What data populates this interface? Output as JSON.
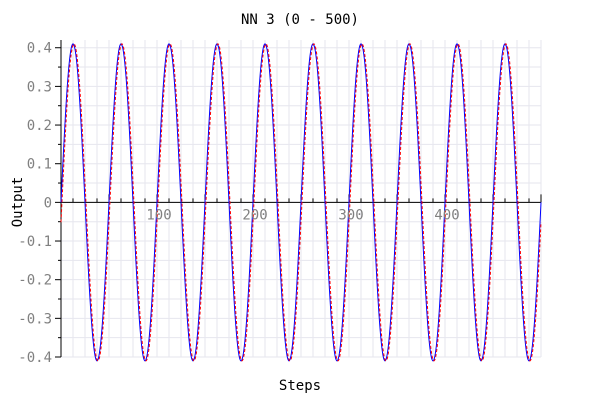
{
  "chart_data": {
    "type": "line",
    "title": "NN 3 (0 - 500)",
    "xlabel": "Steps",
    "ylabel": "Output",
    "xlim": [
      0,
      500
    ],
    "ylim": [
      -0.4,
      0.42
    ],
    "x_ticks": [
      100,
      200,
      300,
      400
    ],
    "x_tick_labels": [
      "100",
      "200",
      "300",
      "400"
    ],
    "y_ticks": [
      0.4,
      0.3,
      0.2,
      0.1,
      0,
      -0.1,
      -0.2,
      -0.3,
      -0.4
    ],
    "y_tick_labels": [
      "0.4",
      "0.3",
      "0.2",
      "0.1",
      "0",
      "-0.1",
      "-0.2",
      "-0.3",
      "-0.4"
    ],
    "grid": true,
    "legend": "none",
    "series": [
      {
        "color": "#0000ff",
        "style": "solid",
        "amplitude": 0.41,
        "period": 50,
        "phase_step": 0,
        "x": [
          0,
          12.5,
          25,
          37.5,
          50,
          62.5,
          75,
          87.5,
          100,
          112.5,
          125,
          137.5,
          150,
          162.5,
          175,
          187.5,
          200,
          212.5,
          225,
          237.5,
          250,
          262.5,
          275,
          287.5,
          300,
          312.5,
          325,
          337.5,
          350,
          362.5,
          375,
          387.5,
          400,
          412.5,
          425,
          437.5,
          450,
          462.5,
          475,
          487.5,
          500
        ],
        "y": [
          0,
          0.41,
          0,
          -0.41,
          0,
          0.41,
          0,
          -0.41,
          0,
          0.41,
          0,
          -0.41,
          0,
          0.41,
          0,
          -0.41,
          0,
          0.41,
          0,
          -0.41,
          0,
          0.41,
          0,
          -0.41,
          0,
          0.41,
          0,
          -0.41,
          0,
          0.41,
          0,
          -0.41,
          0,
          0.41,
          0,
          -0.41,
          0,
          0.41,
          0,
          -0.41,
          -0.29
        ]
      },
      {
        "color": "#ff0000",
        "style": "dashed",
        "amplitude": 0.41,
        "period": 50,
        "phase_step": 1,
        "x": [
          0,
          12.5,
          25,
          37.5,
          50,
          62.5,
          75,
          87.5,
          100,
          112.5,
          125,
          137.5,
          150,
          162.5,
          175,
          187.5,
          200,
          212.5,
          225,
          237.5,
          250,
          262.5,
          275,
          287.5,
          300,
          312.5,
          325,
          337.5,
          350,
          362.5,
          375,
          387.5,
          400,
          412.5,
          425,
          437.5,
          450,
          462.5,
          475,
          487.5,
          500
        ],
        "y": [
          0,
          0.41,
          0,
          -0.41,
          0,
          0.41,
          0,
          -0.41,
          0,
          0.41,
          0,
          -0.41,
          0,
          0.41,
          0,
          -0.41,
          0,
          0.41,
          0,
          -0.41,
          0,
          0.41,
          0,
          -0.41,
          0,
          0.41,
          0,
          -0.41,
          0,
          0.41,
          0,
          -0.41,
          0,
          0.41,
          0,
          -0.41,
          0,
          0.41,
          0,
          -0.41,
          -0.3
        ]
      }
    ]
  }
}
